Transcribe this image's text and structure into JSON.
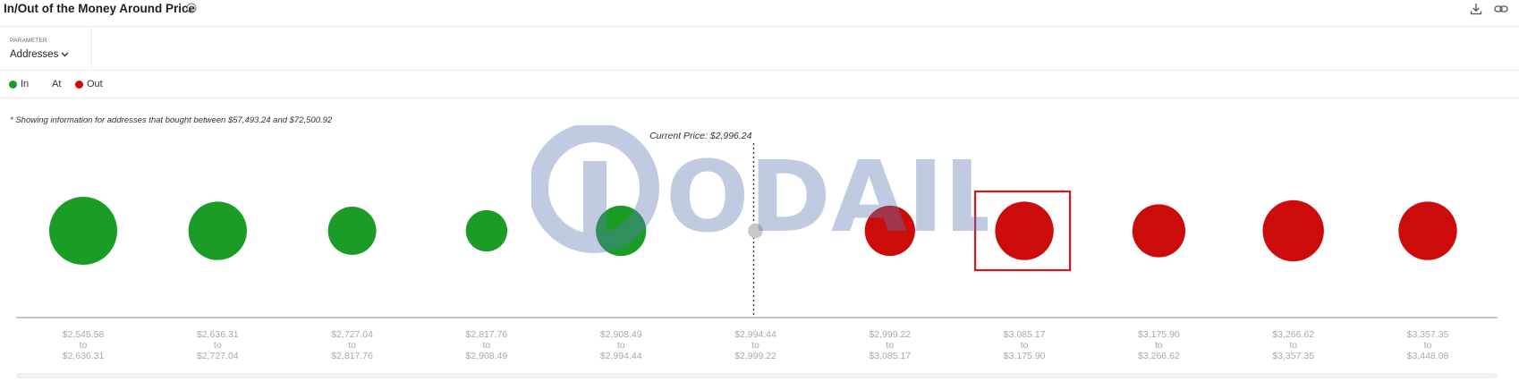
{
  "header": {
    "title": "In/Out of the Money Around Price",
    "help_icon": "help-circle-icon",
    "download_icon": "download-icon",
    "link_icon": "link-icon"
  },
  "parameter": {
    "label": "PARAMETER",
    "value": "Addresses"
  },
  "legend": {
    "items": [
      {
        "label": "In",
        "color": "#1a9c26"
      },
      {
        "label": "At",
        "color": ""
      },
      {
        "label": "Out",
        "color": "#cc0b0b"
      }
    ]
  },
  "note": "* Showing information for addresses that bought between $57,493.24 and $72,500.92",
  "current_price_label": "Current Price: $2,996.24",
  "watermark": "ODAILY",
  "colors": {
    "in": "#1a9c26",
    "at": "#c8c8c8",
    "out": "#cc0b0b",
    "highlight": "#d9161a"
  },
  "chart_data": {
    "type": "scatter",
    "title": "In/Out of the Money Around Price",
    "categories": [
      {
        "from": "$2,545.58",
        "to": "$2,636.31",
        "status": "in",
        "relative_size": 1.0
      },
      {
        "from": "$2,636.31",
        "to": "$2,727.04",
        "status": "in",
        "relative_size": 0.86
      },
      {
        "from": "$2,727.04",
        "to": "$2,817.76",
        "status": "in",
        "relative_size": 0.71
      },
      {
        "from": "$2,817.76",
        "to": "$2,908.49",
        "status": "in",
        "relative_size": 0.61
      },
      {
        "from": "$2,908.49",
        "to": "$2,994.44",
        "status": "in",
        "relative_size": 0.74
      },
      {
        "from": "$2,994.44",
        "to": "$2,999.22",
        "status": "at",
        "relative_size": 0.22
      },
      {
        "from": "$2,999.22",
        "to": "$3,085.17",
        "status": "out",
        "relative_size": 0.74
      },
      {
        "from": "$3,085.17",
        "to": "$3,175.90",
        "status": "out",
        "relative_size": 0.86,
        "highlighted": true
      },
      {
        "from": "$3,175.90",
        "to": "$3,266.62",
        "status": "out",
        "relative_size": 0.78
      },
      {
        "from": "$3,266.62",
        "to": "$3,357.35",
        "status": "out",
        "relative_size": 0.9
      },
      {
        "from": "$3,357.35",
        "to": "$3,448.08",
        "status": "out",
        "relative_size": 0.86
      }
    ],
    "range_connector": "to",
    "current_price": 2996.24
  }
}
